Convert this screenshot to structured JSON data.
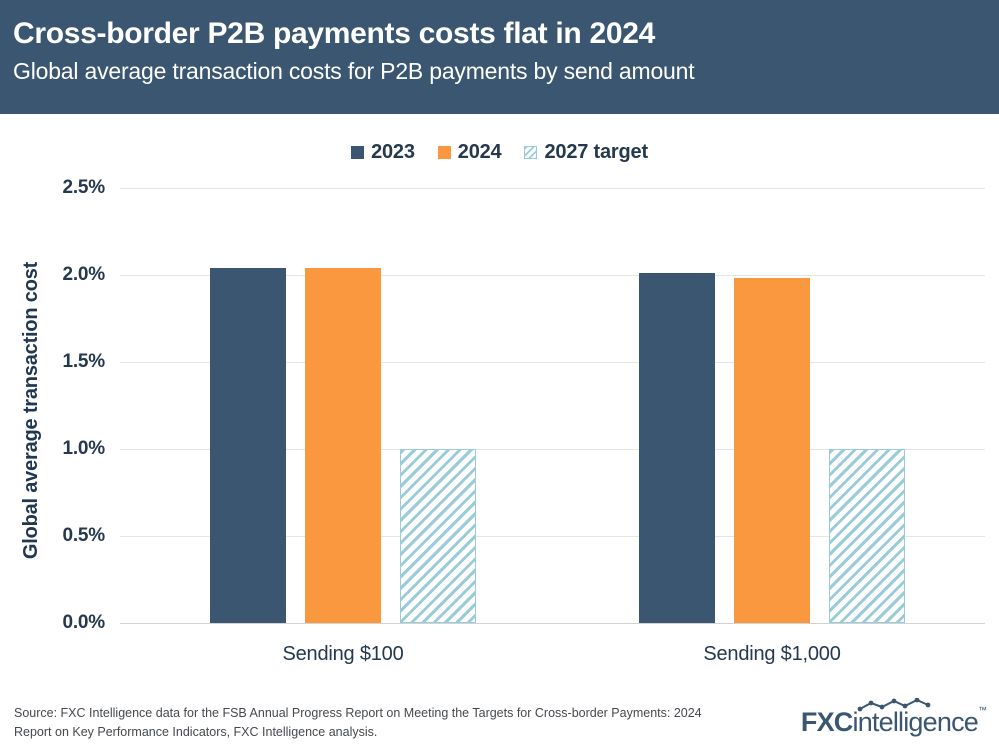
{
  "header": {
    "title": "Cross-border P2B payments costs flat in 2024",
    "subtitle": "Global average transaction costs for P2B payments by send amount"
  },
  "chart_data": {
    "type": "bar",
    "title": "",
    "categories": [
      "Sending $100",
      "Sending $1,000"
    ],
    "series": [
      {
        "name": "2023",
        "values": [
          2.04,
          2.01
        ],
        "color": "#3A5670",
        "style": "solid"
      },
      {
        "name": "2024",
        "values": [
          2.04,
          1.98
        ],
        "color": "#F9983E",
        "style": "solid"
      },
      {
        "name": "2027 target",
        "values": [
          1.0,
          1.0
        ],
        "color": "#9ACBD8",
        "style": "hatched"
      }
    ],
    "xlabel": "",
    "ylabel": "Global average transaction cost",
    "ylim": [
      0,
      2.5
    ],
    "yticks": [
      "0.0%",
      "0.5%",
      "1.0%",
      "1.5%",
      "2.0%",
      "2.5%"
    ],
    "ytick_values": [
      0,
      0.5,
      1.0,
      1.5,
      2.0,
      2.5
    ],
    "grid": true,
    "legend_position": "top"
  },
  "footer": {
    "source_line1": "Source: FXC Intelligence data for the FSB Annual Progress Report on Meeting the Targets for Cross-border Payments: 2024",
    "source_line2": "Report on Key Performance Indicators, FXC Intelligence analysis.",
    "logo_fxc": "FXC",
    "logo_intelligence": "intelligence",
    "logo_tm": "™"
  },
  "colors": {
    "header_bg": "#3A5670",
    "navy": "#3A5670",
    "orange": "#F9983E",
    "hatch_blue": "#9ACBD8",
    "text_navy": "#24384E",
    "gridline": "#E5E5E5",
    "source_text": "#45494D"
  }
}
